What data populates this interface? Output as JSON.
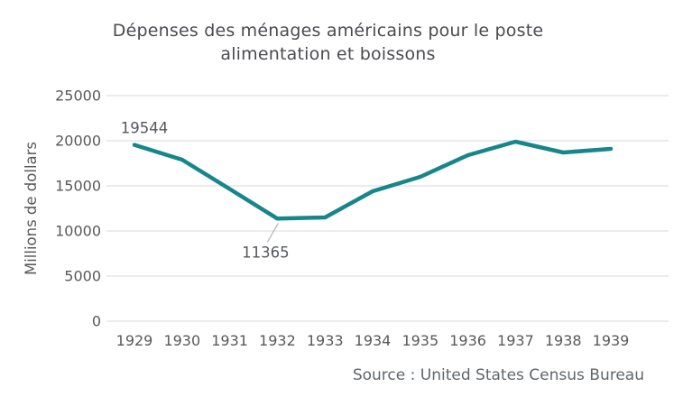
{
  "chart": {
    "title_lines": [
      "Dépenses des ménages américains pour le poste",
      "alimentation et boissons"
    ],
    "ylabel": "Millions de dollars",
    "source": "Source : United States Census Bureau"
  },
  "chart_data": {
    "type": "line",
    "title": "Dépenses des ménages américains pour le poste alimentation et boissons",
    "xlabel": "",
    "ylabel": "Millions de dollars",
    "x": [
      1929,
      1930,
      1931,
      1932,
      1933,
      1934,
      1935,
      1936,
      1937,
      1938,
      1939
    ],
    "values": [
      19544,
      17900,
      14650,
      11365,
      11500,
      14400,
      16000,
      18400,
      19900,
      18700,
      19100
    ],
    "ylim": [
      0,
      25000
    ],
    "yticks": [
      0,
      5000,
      10000,
      15000,
      20000,
      25000
    ],
    "grid": "horizontal",
    "legend": false,
    "line_color": "#17868b",
    "gridline_color": "#d9d9d9",
    "leader_color": "#b3b3b3",
    "annotations": [
      {
        "x": 1929,
        "y": 19544,
        "text": "19544",
        "placement": "above"
      },
      {
        "x": 1932,
        "y": 11365,
        "text": "11365",
        "placement": "below-leader"
      }
    ],
    "source": "Source : United States Census Bureau"
  }
}
